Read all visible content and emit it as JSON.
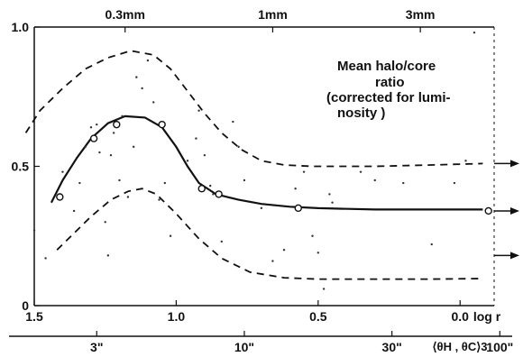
{
  "chart_data": {
    "type": "line",
    "annotation": [
      "Mean halo/core",
      "ratio",
      "(corrected for lumi-",
      "nosity )"
    ],
    "x_axis": {
      "label": "log r",
      "reversed": true,
      "range": [
        1.5,
        -0.12
      ],
      "ticks": [
        {
          "value": 1.5,
          "label": "1.5"
        },
        {
          "value": 1.0,
          "label": "1.0"
        },
        {
          "value": 0.5,
          "label": "0.5"
        },
        {
          "value": 0.0,
          "label": "0.0"
        }
      ]
    },
    "top_axis": {
      "ticks": [
        {
          "value": 1.18,
          "label": "0.3mm"
        },
        {
          "value": 0.66,
          "label": "1mm"
        },
        {
          "value": 0.14,
          "label": "3mm"
        }
      ]
    },
    "bottom_axis": {
      "label": "⟨θH , θC⟩3",
      "ticks": [
        {
          "value": 1.28,
          "label": "3\""
        },
        {
          "value": 0.76,
          "label": "10\""
        },
        {
          "value": 0.24,
          "label": "30\""
        },
        {
          "value": -0.14,
          "label": "100\""
        }
      ]
    },
    "y_axis": {
      "range": [
        0,
        1.0
      ],
      "ticks": [
        {
          "value": 0,
          "label": "0"
        },
        {
          "value": 0.5,
          "label": "0.5"
        },
        {
          "value": 1.0,
          "label": "1.0"
        }
      ]
    },
    "series": [
      {
        "style": "open-circles",
        "points": [
          [
            1.41,
            0.39
          ],
          [
            1.29,
            0.6
          ],
          [
            1.21,
            0.65
          ],
          [
            1.05,
            0.65
          ],
          [
            0.91,
            0.42
          ],
          [
            0.85,
            0.4
          ],
          [
            0.57,
            0.35
          ],
          [
            -0.1,
            0.34
          ]
        ]
      },
      {
        "style": "solid",
        "points": [
          [
            1.44,
            0.37
          ],
          [
            1.4,
            0.45
          ],
          [
            1.35,
            0.53
          ],
          [
            1.3,
            0.6
          ],
          [
            1.24,
            0.655
          ],
          [
            1.18,
            0.68
          ],
          [
            1.11,
            0.675
          ],
          [
            1.05,
            0.64
          ],
          [
            1.0,
            0.57
          ],
          [
            0.96,
            0.5
          ],
          [
            0.92,
            0.44
          ],
          [
            0.86,
            0.4
          ],
          [
            0.78,
            0.38
          ],
          [
            0.7,
            0.365
          ],
          [
            0.6,
            0.355
          ],
          [
            0.5,
            0.35
          ],
          [
            0.3,
            0.345
          ],
          [
            0.1,
            0.345
          ],
          [
            -0.08,
            0.345
          ]
        ]
      },
      {
        "style": "dashed",
        "points": [
          [
            1.53,
            0.62
          ],
          [
            1.48,
            0.7
          ],
          [
            1.4,
            0.78
          ],
          [
            1.32,
            0.85
          ],
          [
            1.24,
            0.89
          ],
          [
            1.16,
            0.915
          ],
          [
            1.08,
            0.9
          ],
          [
            1.02,
            0.85
          ],
          [
            0.96,
            0.77
          ],
          [
            0.9,
            0.69
          ],
          [
            0.84,
            0.62
          ],
          [
            0.77,
            0.56
          ],
          [
            0.7,
            0.52
          ],
          [
            0.62,
            0.505
          ],
          [
            0.52,
            0.5
          ],
          [
            0.3,
            0.5
          ],
          [
            0.1,
            0.505
          ],
          [
            -0.08,
            0.51
          ]
        ]
      },
      {
        "style": "dashed",
        "points": [
          [
            1.42,
            0.2
          ],
          [
            1.36,
            0.26
          ],
          [
            1.3,
            0.32
          ],
          [
            1.23,
            0.38
          ],
          [
            1.17,
            0.41
          ],
          [
            1.12,
            0.42
          ],
          [
            1.07,
            0.4
          ],
          [
            1.0,
            0.33
          ],
          [
            0.92,
            0.24
          ],
          [
            0.84,
            0.17
          ],
          [
            0.74,
            0.12
          ],
          [
            0.62,
            0.1
          ],
          [
            0.5,
            0.095
          ],
          [
            0.3,
            0.095
          ],
          [
            0.1,
            0.095
          ],
          [
            -0.08,
            0.097
          ]
        ]
      },
      {
        "style": "dots",
        "points": [
          [
            1.5,
            0.27
          ],
          [
            1.46,
            0.17
          ],
          [
            1.4,
            0.48
          ],
          [
            1.36,
            0.34
          ],
          [
            1.34,
            0.44
          ],
          [
            1.32,
            0.57
          ],
          [
            1.3,
            0.64
          ],
          [
            1.28,
            0.65
          ],
          [
            1.27,
            0.55
          ],
          [
            1.25,
            0.3
          ],
          [
            1.24,
            0.18
          ],
          [
            1.23,
            0.54
          ],
          [
            1.22,
            0.62
          ],
          [
            1.2,
            0.45
          ],
          [
            1.19,
            0.68
          ],
          [
            1.17,
            0.39
          ],
          [
            1.15,
            0.57
          ],
          [
            1.14,
            0.82
          ],
          [
            1.12,
            0.78
          ],
          [
            1.1,
            0.88
          ],
          [
            1.08,
            0.73
          ],
          [
            1.06,
            0.38
          ],
          [
            1.04,
            0.44
          ],
          [
            1.02,
            0.25
          ],
          [
            0.96,
            0.52
          ],
          [
            0.93,
            0.6
          ],
          [
            0.92,
            0.7
          ],
          [
            0.9,
            0.54
          ],
          [
            0.88,
            0.43
          ],
          [
            0.87,
            0.4
          ],
          [
            0.84,
            0.23
          ],
          [
            0.8,
            0.66
          ],
          [
            0.78,
            0.57
          ],
          [
            0.76,
            0.45
          ],
          [
            0.7,
            0.35
          ],
          [
            0.66,
            0.16
          ],
          [
            0.62,
            0.2
          ],
          [
            0.58,
            0.42
          ],
          [
            0.55,
            0.48
          ],
          [
            0.52,
            0.25
          ],
          [
            0.5,
            0.19
          ],
          [
            0.48,
            0.06
          ],
          [
            0.46,
            0.4
          ],
          [
            0.45,
            0.37
          ],
          [
            0.35,
            0.48
          ],
          [
            0.3,
            0.45
          ],
          [
            0.2,
            0.44
          ],
          [
            0.1,
            0.22
          ],
          [
            0.02,
            0.44
          ],
          [
            -0.02,
            0.52
          ],
          [
            -0.05,
            0.98
          ]
        ]
      }
    ],
    "arrows": [
      0.51,
      0.34,
      0.18
    ]
  }
}
